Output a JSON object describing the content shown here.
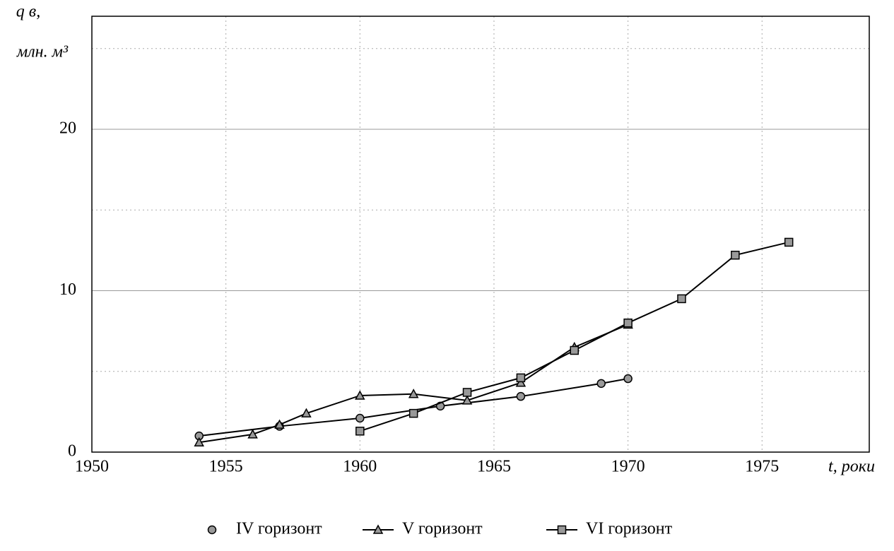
{
  "chart_data": {
    "type": "line",
    "ylabel": [
      "q в,",
      "млн. м³"
    ],
    "xlabel": "t, роки",
    "xlim": [
      1950,
      1979
    ],
    "xticks": [
      1950,
      1955,
      1960,
      1965,
      1970,
      1975
    ],
    "ylim": [
      0,
      27
    ],
    "yticks": [
      0,
      10,
      20
    ],
    "yminor": [
      5,
      15,
      25
    ],
    "grid": true,
    "series": [
      {
        "name": "IV горизонт",
        "color": "#000000",
        "marker": "circle",
        "x": [
          1954,
          1957,
          1960,
          1963,
          1966,
          1969,
          1970
        ],
        "values": [
          1.0,
          1.6,
          2.1,
          2.85,
          3.45,
          4.25,
          4.55
        ]
      },
      {
        "name": "V горизонт",
        "color": "#000000",
        "marker": "triangle",
        "x": [
          1954,
          1956,
          1957,
          1958,
          1960,
          1962,
          1964,
          1966,
          1968,
          1970
        ],
        "values": [
          0.6,
          1.1,
          1.7,
          2.4,
          3.5,
          3.6,
          3.2,
          4.3,
          6.5,
          7.9
        ]
      },
      {
        "name": "VI горизонт",
        "color": "#000000",
        "marker": "square",
        "x": [
          1960,
          1962,
          1964,
          1966,
          1968,
          1970,
          1972,
          1974,
          1976
        ],
        "values": [
          1.3,
          2.4,
          3.7,
          4.6,
          6.3,
          8.0,
          9.5,
          12.2,
          13.0
        ]
      }
    ]
  }
}
